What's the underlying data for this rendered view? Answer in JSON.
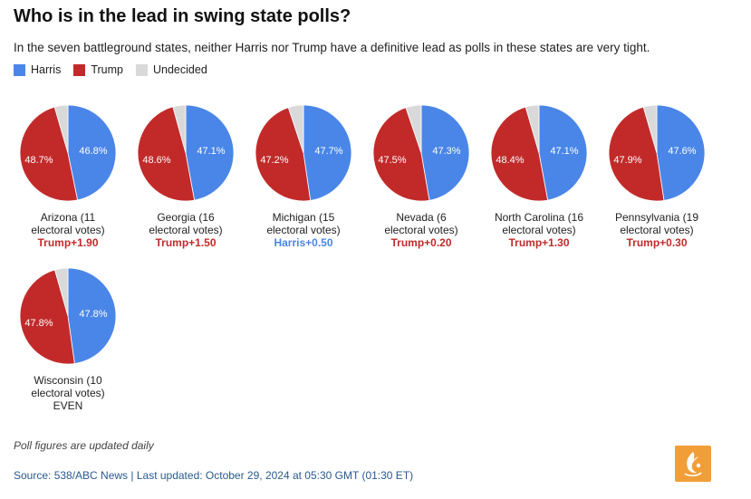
{
  "title": "Who is in the lead in swing state polls?",
  "subtitle": "In the seven battleground states, neither Harris nor Trump have a definitive lead as polls in these states are very tight.",
  "legend": [
    {
      "label": "Harris",
      "color": "#4a86e8"
    },
    {
      "label": "Trump",
      "color": "#c22a2a"
    },
    {
      "label": "Undecided",
      "color": "#d9d9d9"
    }
  ],
  "chart_data": [
    {
      "type": "pie",
      "name_line1": "Arizona (11",
      "name_line2": "electoral votes)",
      "lead": "Trump+1.90",
      "lead_party": "Trump",
      "harris": 46.8,
      "trump": 48.7,
      "harris_label": "46.8%",
      "trump_label": "48.7%"
    },
    {
      "type": "pie",
      "name_line1": "Georgia (16",
      "name_line2": "electoral votes)",
      "lead": "Trump+1.50",
      "lead_party": "Trump",
      "harris": 47.1,
      "trump": 48.6,
      "harris_label": "47.1%",
      "trump_label": "48.6%"
    },
    {
      "type": "pie",
      "name_line1": "Michigan (15",
      "name_line2": "electoral votes)",
      "lead": "Harris+0.50",
      "lead_party": "Harris",
      "harris": 47.7,
      "trump": 47.2,
      "harris_label": "47.7%",
      "trump_label": "47.2%"
    },
    {
      "type": "pie",
      "name_line1": "Nevada (6",
      "name_line2": "electoral votes)",
      "lead": "Trump+0.20",
      "lead_party": "Trump",
      "harris": 47.3,
      "trump": 47.5,
      "harris_label": "47.3%",
      "trump_label": "47.5%"
    },
    {
      "type": "pie",
      "name_line1": "North Carolina (16",
      "name_line2": "electoral votes)",
      "lead": "Trump+1.30",
      "lead_party": "Trump",
      "harris": 47.1,
      "trump": 48.4,
      "harris_label": "47.1%",
      "trump_label": "48.4%"
    },
    {
      "type": "pie",
      "name_line1": "Pennsylvania (19",
      "name_line2": "electoral votes)",
      "lead": "Trump+0.30",
      "lead_party": "Trump",
      "harris": 47.6,
      "trump": 47.9,
      "harris_label": "47.6%",
      "trump_label": "47.9%"
    },
    {
      "type": "pie",
      "name_line1": "Wisconsin (10",
      "name_line2": "electoral votes)",
      "lead": "EVEN",
      "lead_party": "Even",
      "harris": 47.8,
      "trump": 47.8,
      "harris_label": "47.8%",
      "trump_label": "47.8%"
    }
  ],
  "lead_colors": {
    "Harris": "#4a86e8",
    "Trump": "#c22a2a",
    "Even": "#222222"
  },
  "footer": {
    "note": "Poll figures are updated daily",
    "source": "Source: 538/ABC News | Last updated: October 29, 2024 at 05:30 GMT (01:30 ET)"
  },
  "logo_icon": "al-jazeera-logo-icon"
}
